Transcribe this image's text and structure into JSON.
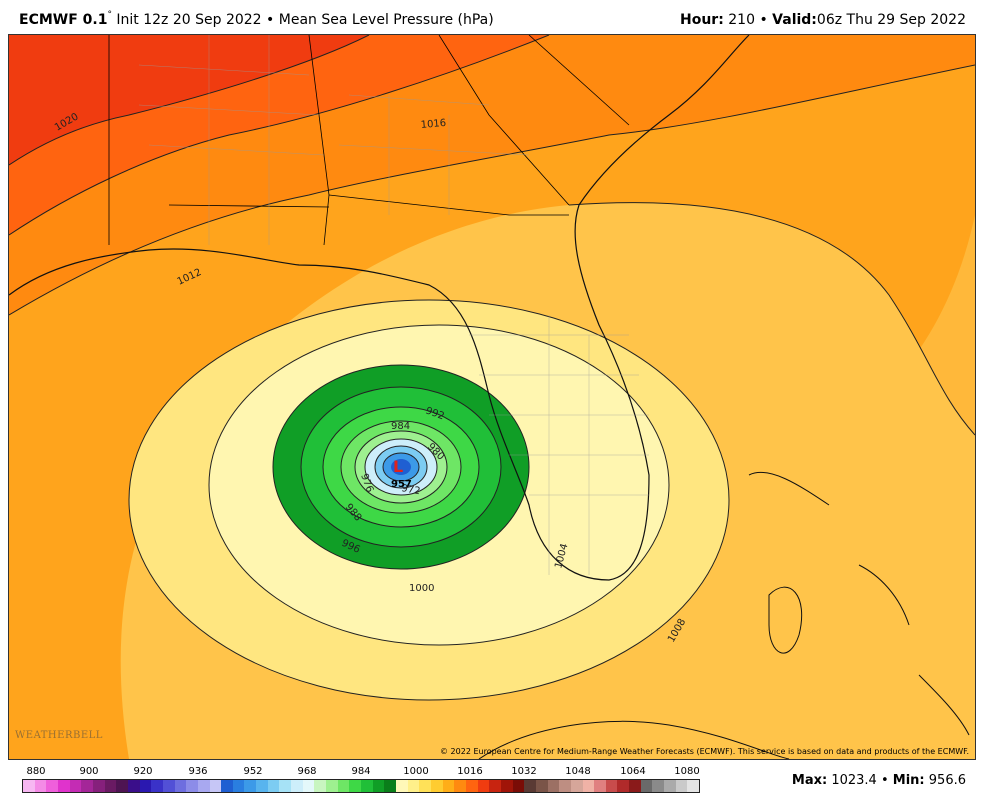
{
  "header": {
    "model": "ECMWF 0.1",
    "degree_symbol": "°",
    "init": "Init 12z 20 Sep 2022",
    "separator": "•",
    "field": "Mean Sea Level Pressure (hPa)",
    "hour_label": "Hour:",
    "hour_value": "210",
    "valid_label": "Valid:",
    "valid_value": "06z Thu 29 Sep 2022"
  },
  "map": {
    "low_marker": "L",
    "center_value": "957",
    "contour_labels": [
      "1020",
      "1016",
      "1012",
      "1008",
      "1004",
      "1000",
      "996",
      "992",
      "988",
      "984",
      "980",
      "976",
      "972"
    ],
    "credit": "© 2022 European Centre for Medium-Range Weather Forecasts (ECMWF). This service is based on data and products of the ECMWF.",
    "watermark": "WEATHERBELL"
  },
  "colorbar": {
    "tick_labels": [
      "880",
      "900",
      "920",
      "936",
      "952",
      "968",
      "984",
      "1000",
      "1016",
      "1032",
      "1048",
      "1064",
      "1080"
    ],
    "colors": [
      "#f7b7f2",
      "#f48be6",
      "#ef5fdb",
      "#e033cc",
      "#c42cb4",
      "#a42698",
      "#86207c",
      "#6a1a63",
      "#4e1452",
      "#3a0e8a",
      "#2a18b0",
      "#3a32c8",
      "#5250d6",
      "#6e6edf",
      "#8c8ce8",
      "#a8a8f0",
      "#c6c6f6",
      "#1f5fd2",
      "#2a7ee0",
      "#3c9ae8",
      "#58b4ee",
      "#7cccf2",
      "#a6e2f6",
      "#cdeefa",
      "#e4f8fa",
      "#c8f5c0",
      "#9ef090",
      "#6ee665",
      "#3ed846",
      "#20bf38",
      "#109e26",
      "#0a7e1a",
      "#fff8b8",
      "#fff08a",
      "#ffe158",
      "#ffcc30",
      "#ffae18",
      "#ff8a10",
      "#ff6410",
      "#f03c10",
      "#c82410",
      "#a01408",
      "#7a0c06",
      "#5a3a34",
      "#7a5448",
      "#9c7064",
      "#be8e82",
      "#d6a69a",
      "#f0b2a6",
      "#e08080",
      "#c84c4c",
      "#b02a2a",
      "#8a1a1a",
      "#6a6a6a",
      "#8a8a8a",
      "#aaaaaa",
      "#cacaca",
      "#e4e4e4"
    ],
    "max_label": "Max:",
    "max_value": "1023.4",
    "min_label": "Min:",
    "min_value": "956.6"
  }
}
